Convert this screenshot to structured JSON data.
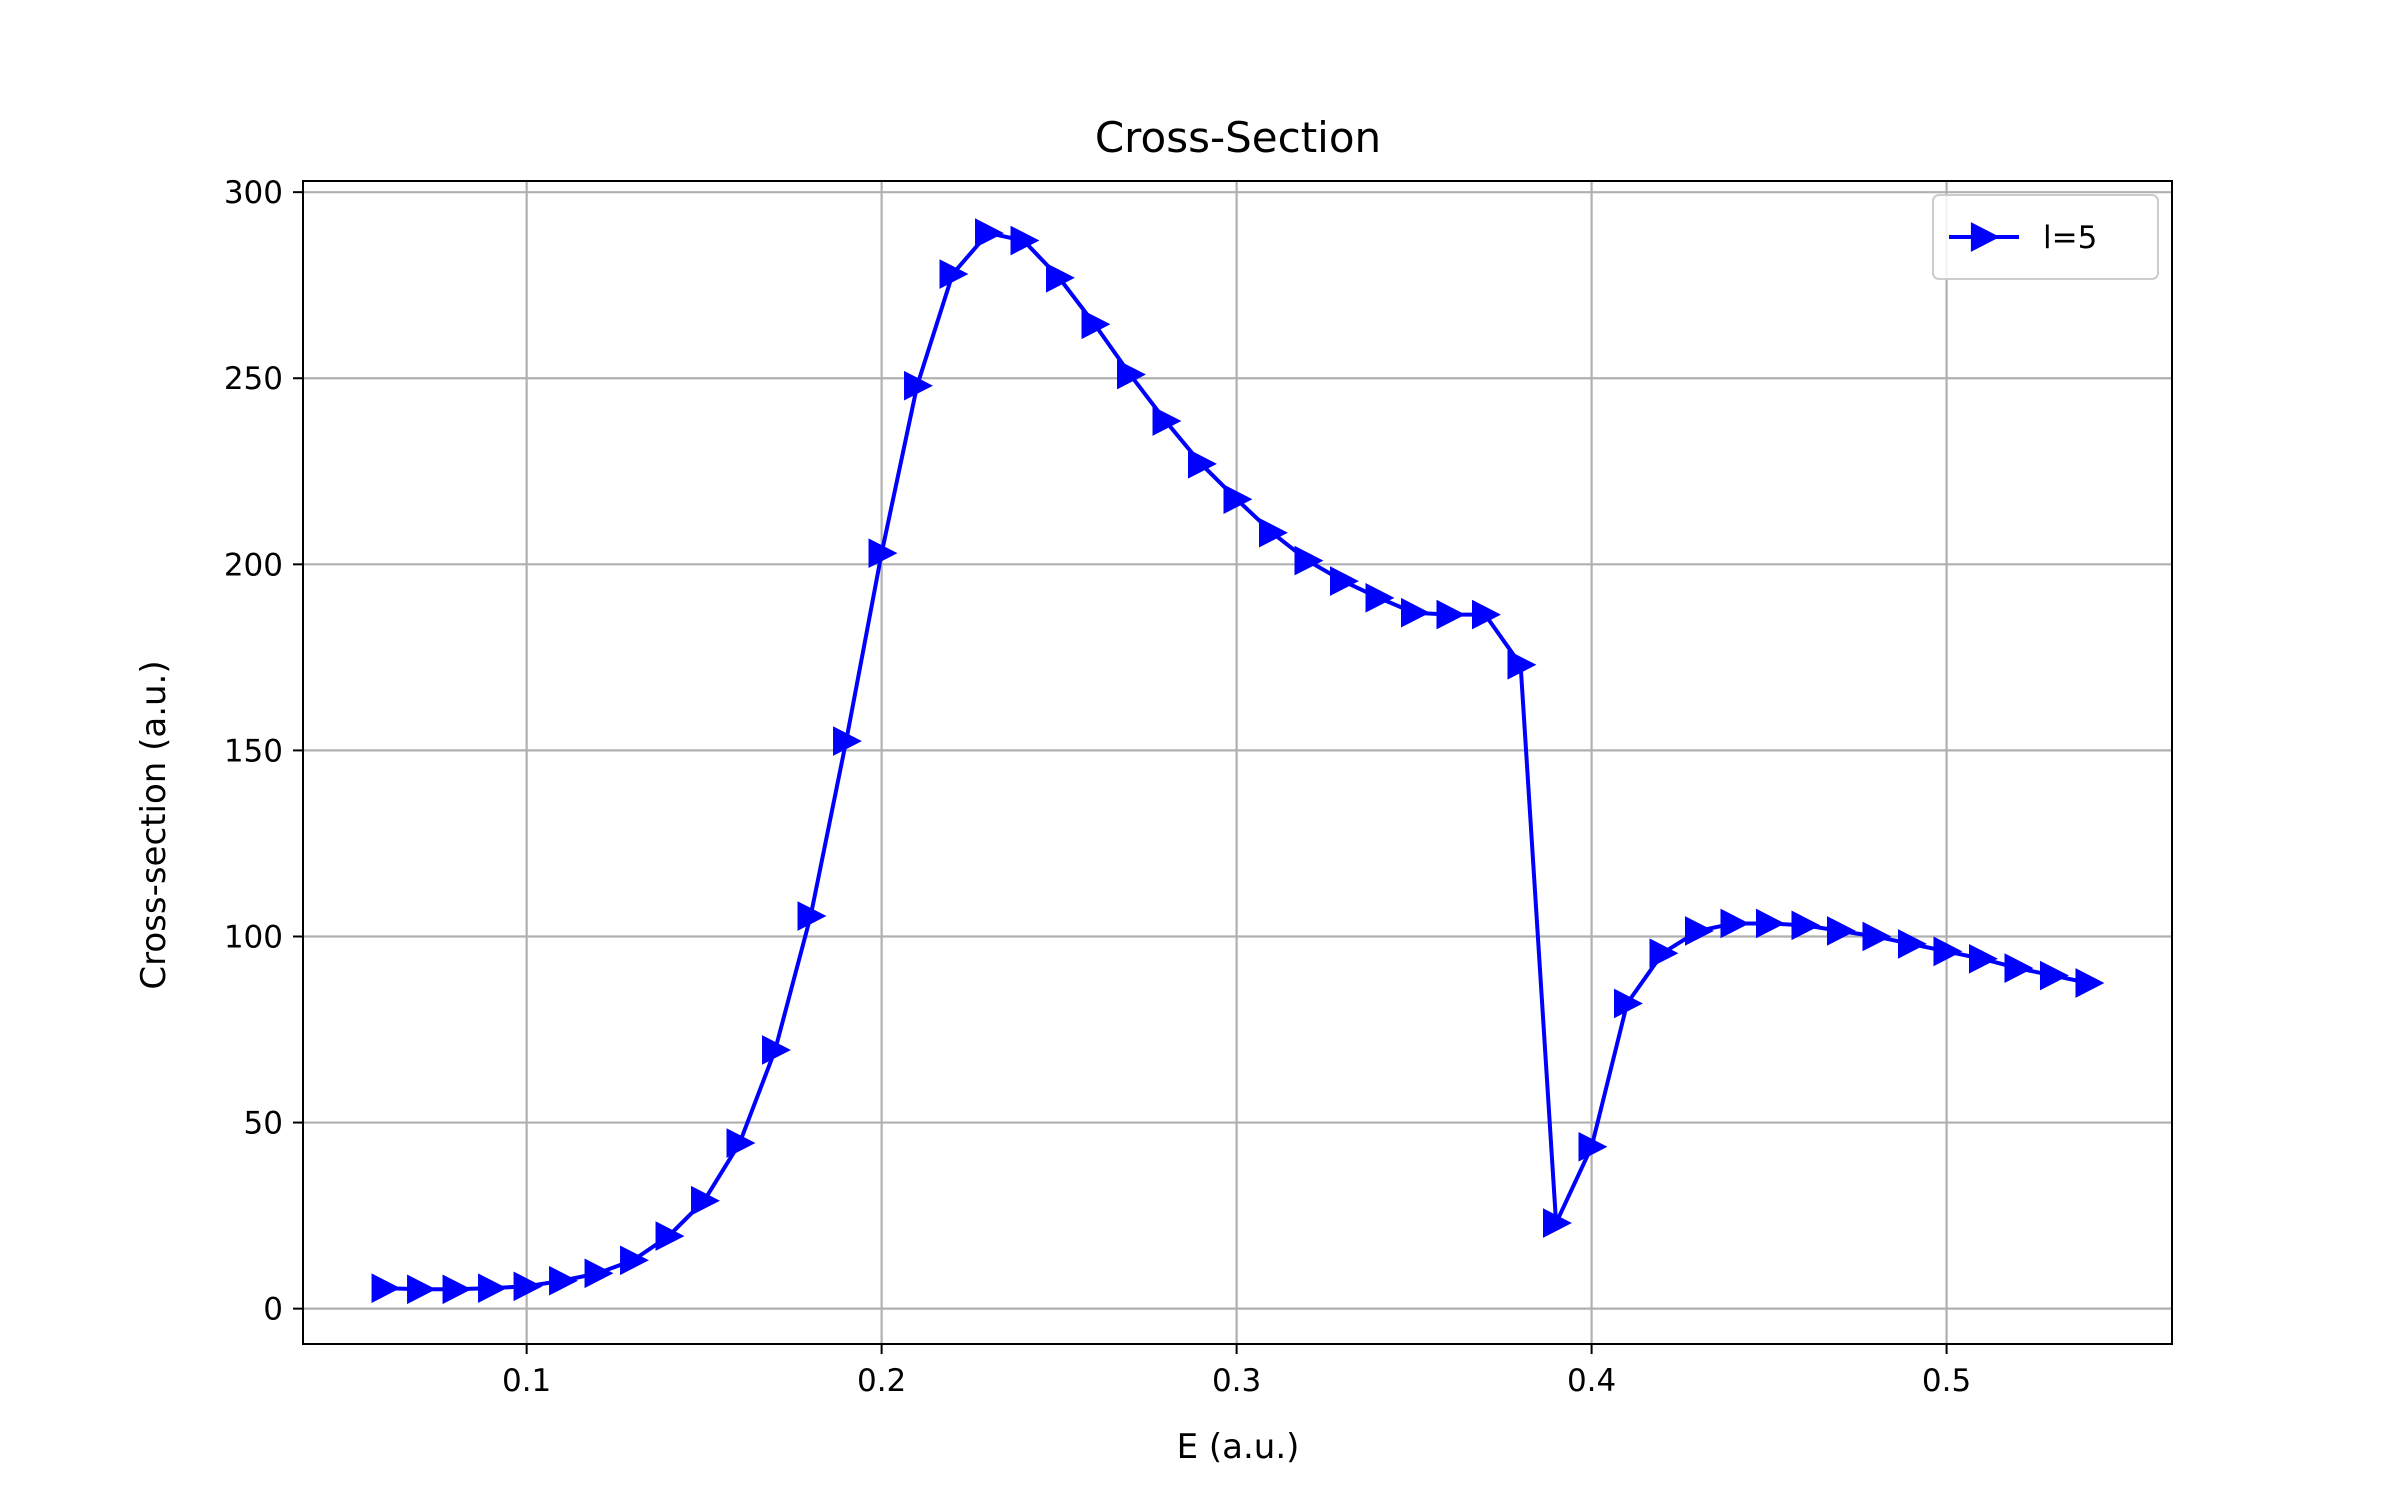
{
  "chart_data": {
    "type": "line",
    "title": "Cross-Section",
    "xlabel": "E (a.u.)",
    "ylabel": "Cross-section (a.u.)",
    "xlim": [
      0.037,
      0.5635
    ],
    "ylim": [
      -9.5,
      303
    ],
    "xticks": [
      0.1,
      0.2,
      0.3,
      0.4,
      0.5
    ],
    "xtick_labels": [
      "0.1",
      "0.2",
      "0.3",
      "0.4",
      "0.5"
    ],
    "yticks": [
      0,
      50,
      100,
      150,
      200,
      250,
      300
    ],
    "ytick_labels": [
      "0",
      "50",
      "100",
      "150",
      "200",
      "250",
      "300"
    ],
    "grid": true,
    "legend_position": "top-right",
    "series": [
      {
        "name": "l=5",
        "color": "#0000ff",
        "marker": "triangle-right",
        "x": [
          0.06,
          0.07,
          0.08,
          0.09,
          0.1,
          0.11,
          0.12,
          0.13,
          0.14,
          0.15,
          0.16,
          0.17,
          0.18,
          0.19,
          0.2,
          0.21,
          0.22,
          0.23,
          0.24,
          0.25,
          0.26,
          0.27,
          0.28,
          0.29,
          0.3,
          0.31,
          0.32,
          0.33,
          0.34,
          0.35,
          0.36,
          0.37,
          0.38,
          0.39,
          0.4,
          0.41,
          0.42,
          0.43,
          0.44,
          0.45,
          0.46,
          0.47,
          0.48,
          0.49,
          0.5,
          0.51,
          0.52,
          0.53,
          0.54
        ],
        "y": [
          5.5,
          5.2,
          5.2,
          5.5,
          6,
          7.5,
          9.5,
          13,
          19.5,
          29,
          44.5,
          69.5,
          105.5,
          152.5,
          203,
          248,
          278,
          289,
          287,
          277,
          264.5,
          251,
          238.5,
          227,
          217.5,
          208.5,
          201,
          195.5,
          191,
          187,
          186.5,
          186.5,
          173,
          23,
          43.5,
          82,
          95.5,
          101.5,
          103.5,
          103.5,
          103,
          101.5,
          100,
          98,
          96,
          94,
          91.5,
          89.5,
          87.5
        ]
      }
    ]
  }
}
